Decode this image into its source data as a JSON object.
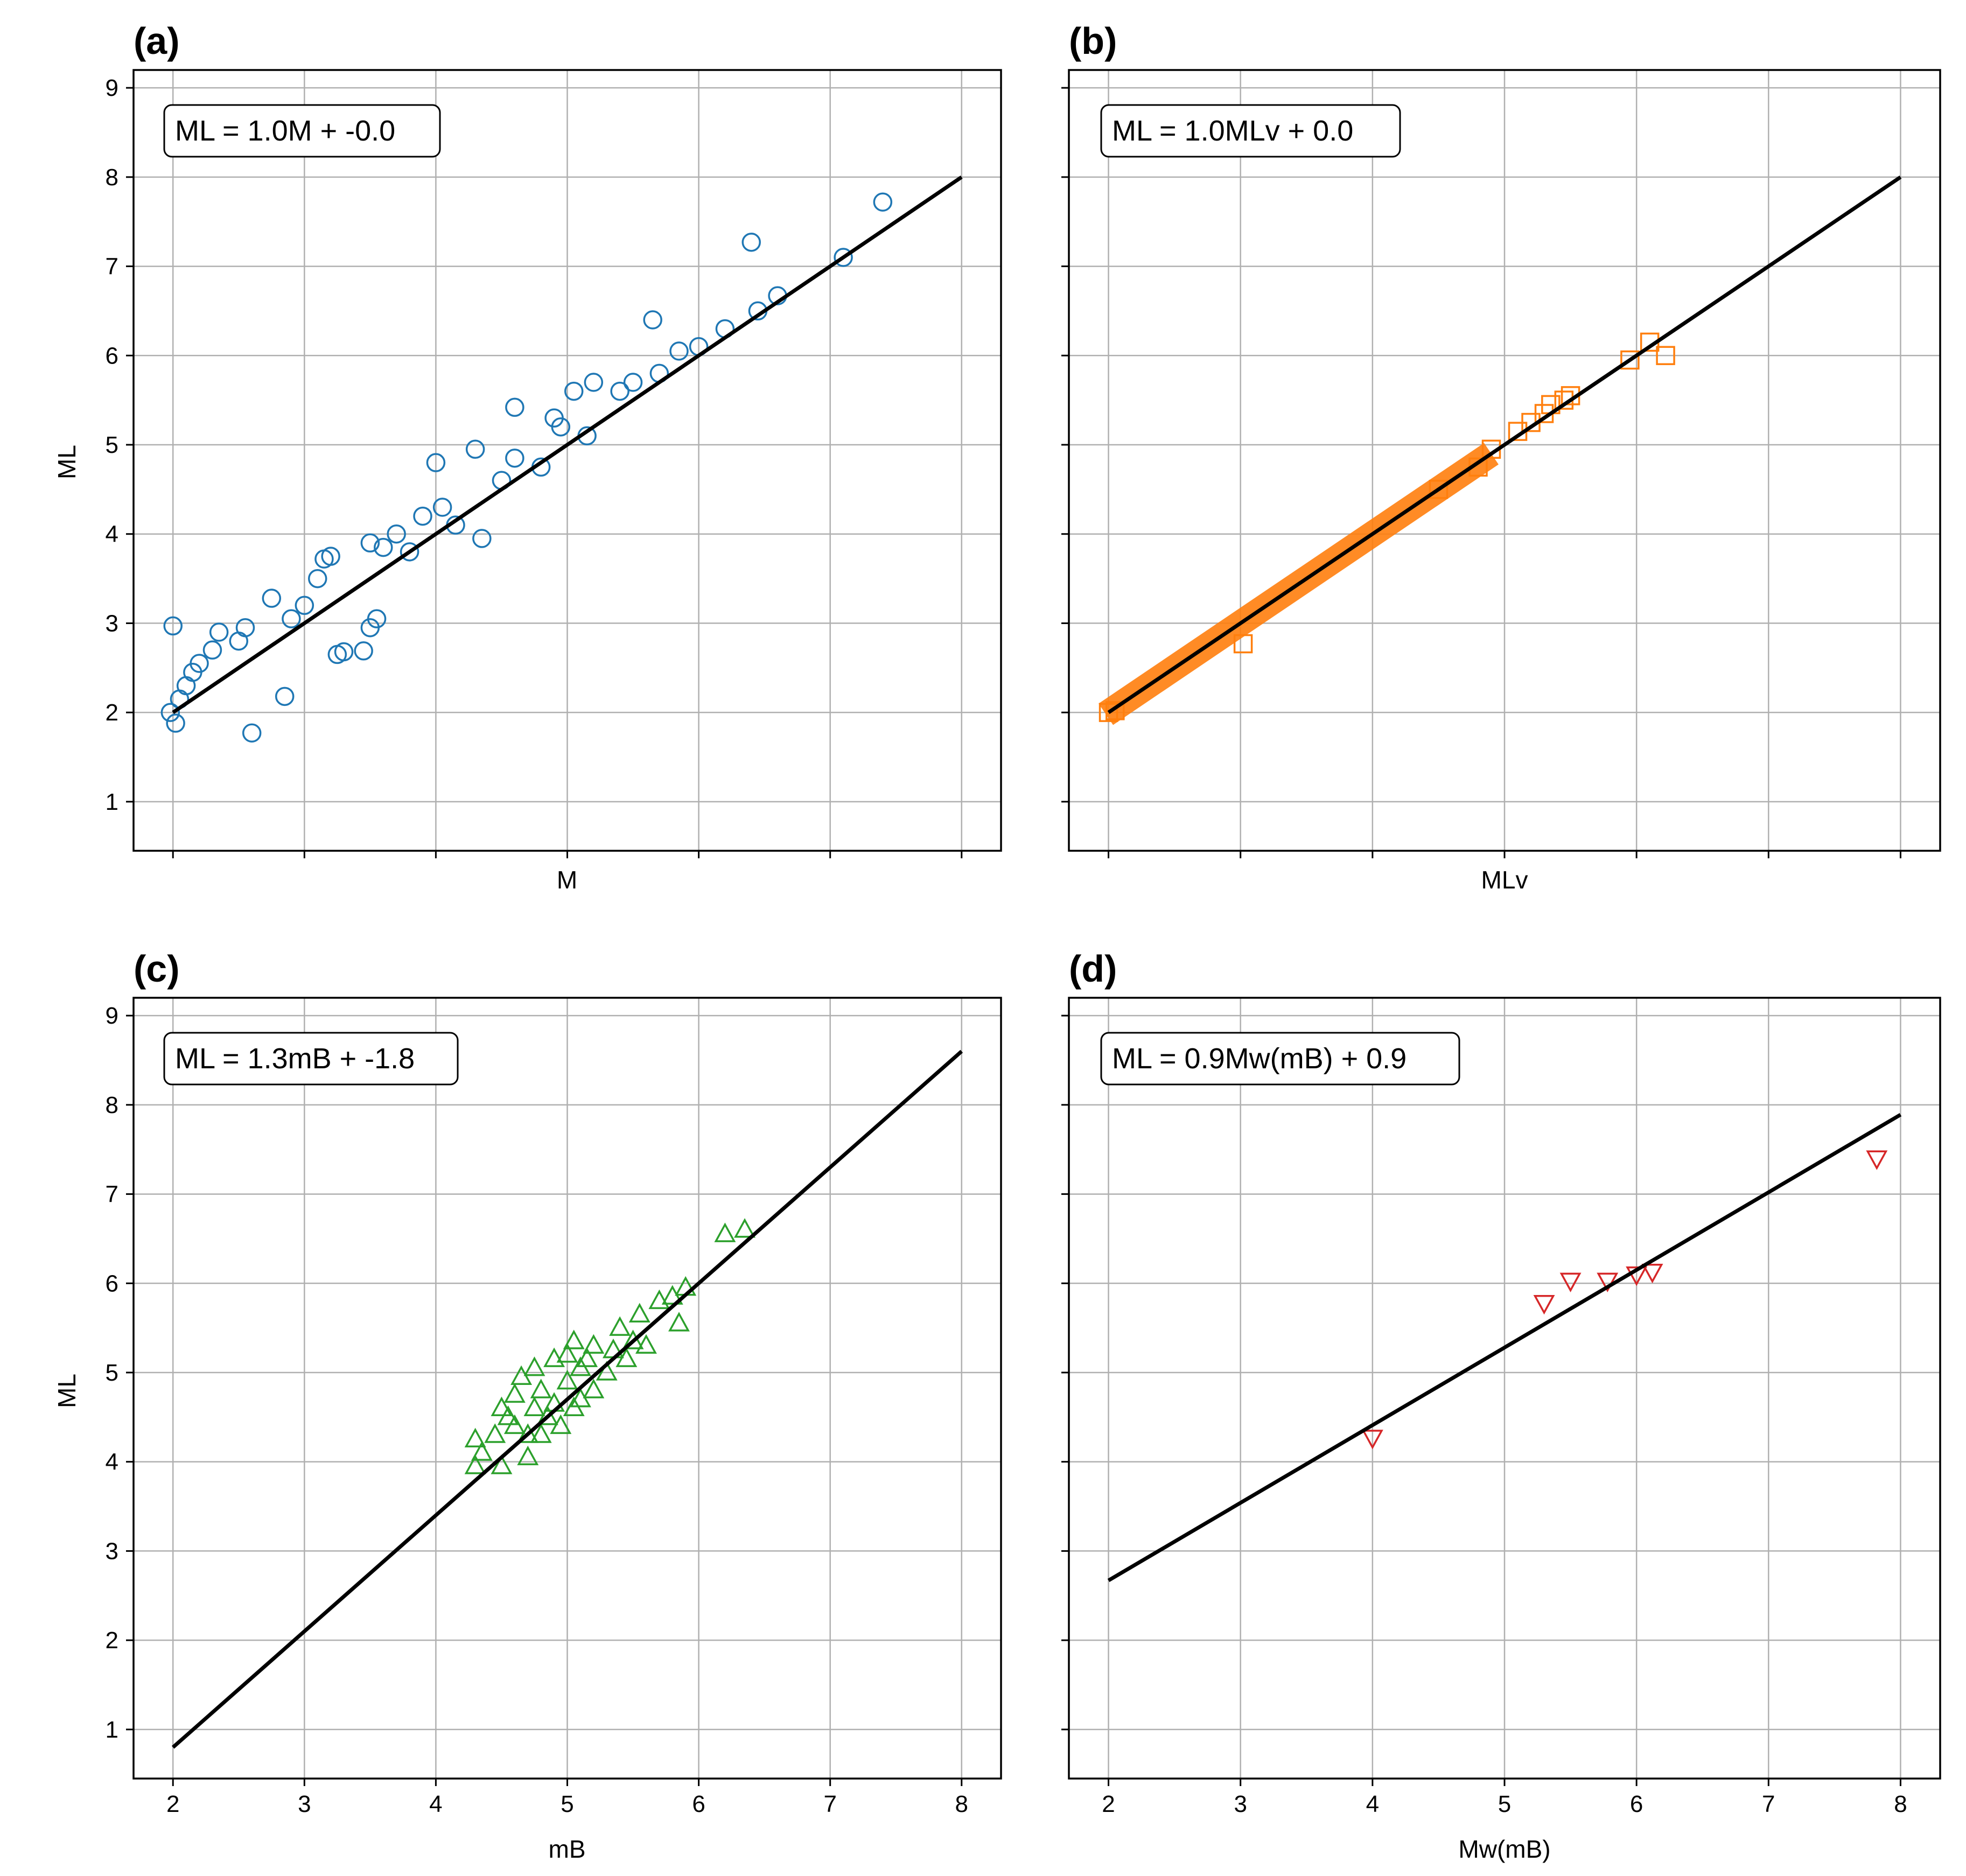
{
  "chart_data": [
    {
      "panel": "(a)",
      "type": "scatter",
      "xlabel": "M",
      "ylabel": "ML",
      "xlim": [
        1.7,
        8.3
      ],
      "ylim": [
        0.45,
        9.2
      ],
      "xticks": [
        2,
        3,
        4,
        5,
        6,
        7,
        8
      ],
      "yticks": [
        1,
        2,
        3,
        4,
        5,
        6,
        7,
        8,
        9
      ],
      "show_xtick_labels": false,
      "show_ytick_labels": true,
      "grid": true,
      "annotation": "ML = 1.0M + -0.0",
      "marker": "circle",
      "color": "#1f77b4",
      "fit": {
        "slope": 1.0,
        "intercept": 0.0,
        "x_range": [
          2,
          8
        ]
      },
      "points": [
        [
          2.0,
          2.97
        ],
        [
          2.02,
          1.88
        ],
        [
          1.98,
          2.0
        ],
        [
          2.05,
          2.15
        ],
        [
          2.1,
          2.3
        ],
        [
          2.15,
          2.45
        ],
        [
          2.2,
          2.55
        ],
        [
          2.3,
          2.7
        ],
        [
          2.35,
          2.9
        ],
        [
          2.6,
          1.77
        ],
        [
          2.5,
          2.8
        ],
        [
          2.55,
          2.95
        ],
        [
          2.75,
          3.28
        ],
        [
          2.85,
          2.18
        ],
        [
          2.9,
          3.05
        ],
        [
          3.0,
          3.2
        ],
        [
          3.1,
          3.5
        ],
        [
          3.15,
          3.72
        ],
        [
          3.2,
          3.75
        ],
        [
          3.3,
          2.68
        ],
        [
          3.25,
          2.65
        ],
        [
          3.45,
          2.69
        ],
        [
          3.5,
          2.95
        ],
        [
          3.55,
          3.05
        ],
        [
          3.5,
          3.9
        ],
        [
          3.6,
          3.85
        ],
        [
          3.7,
          4.0
        ],
        [
          3.8,
          3.8
        ],
        [
          3.9,
          4.2
        ],
        [
          4.0,
          4.8
        ],
        [
          4.05,
          4.3
        ],
        [
          4.15,
          4.1
        ],
        [
          4.3,
          4.95
        ],
        [
          4.35,
          3.95
        ],
        [
          4.5,
          4.6
        ],
        [
          4.6,
          4.85
        ],
        [
          4.6,
          5.42
        ],
        [
          4.8,
          4.75
        ],
        [
          4.9,
          5.3
        ],
        [
          4.95,
          5.2
        ],
        [
          5.05,
          5.6
        ],
        [
          5.15,
          5.1
        ],
        [
          5.2,
          5.7
        ],
        [
          5.4,
          5.6
        ],
        [
          5.5,
          5.7
        ],
        [
          5.65,
          6.4
        ],
        [
          5.7,
          5.8
        ],
        [
          5.85,
          6.05
        ],
        [
          6.0,
          6.1
        ],
        [
          6.2,
          6.3
        ],
        [
          6.4,
          7.27
        ],
        [
          6.45,
          6.5
        ],
        [
          6.6,
          6.67
        ],
        [
          7.1,
          7.1
        ],
        [
          7.4,
          7.72
        ]
      ]
    },
    {
      "panel": "(b)",
      "type": "scatter",
      "xlabel": "MLv",
      "ylabel": "",
      "xlim": [
        1.7,
        8.3
      ],
      "ylim": [
        0.45,
        9.2
      ],
      "xticks": [
        2,
        3,
        4,
        5,
        6,
        7,
        8
      ],
      "yticks": [
        1,
        2,
        3,
        4,
        5,
        6,
        7,
        8,
        9
      ],
      "show_xtick_labels": false,
      "show_ytick_labels": false,
      "grid": true,
      "annotation": "ML = 1.0MLv + 0.0",
      "marker": "square",
      "color": "#ff7f0e",
      "fit": {
        "slope": 1.0,
        "intercept": 0.0,
        "x_range": [
          2,
          8
        ]
      },
      "points": [
        [
          2.0,
          2.0
        ],
        [
          2.05,
          2.02
        ],
        [
          3.02,
          2.77
        ],
        [
          4.5,
          4.5
        ],
        [
          4.8,
          4.75
        ],
        [
          4.9,
          4.95
        ],
        [
          5.1,
          5.15
        ],
        [
          5.2,
          5.25
        ],
        [
          5.3,
          5.35
        ],
        [
          5.35,
          5.45
        ],
        [
          5.45,
          5.5
        ],
        [
          5.5,
          5.55
        ],
        [
          5.95,
          5.95
        ],
        [
          6.1,
          6.15
        ],
        [
          6.22,
          6.0
        ]
      ]
    },
    {
      "panel": "(c)",
      "type": "scatter",
      "xlabel": "mB",
      "ylabel": "ML",
      "xlim": [
        1.7,
        8.3
      ],
      "ylim": [
        0.45,
        9.2
      ],
      "xticks": [
        2,
        3,
        4,
        5,
        6,
        7,
        8
      ],
      "yticks": [
        1,
        2,
        3,
        4,
        5,
        6,
        7,
        8,
        9
      ],
      "show_xtick_labels": true,
      "show_ytick_labels": true,
      "grid": true,
      "annotation": "ML = 1.3mB + -1.8",
      "marker": "triangle-up",
      "color": "#2ca02c",
      "fit": {
        "slope": 1.3,
        "intercept": -1.8,
        "x_range": [
          2,
          8
        ]
      },
      "points": [
        [
          4.3,
          3.95
        ],
        [
          4.3,
          4.25
        ],
        [
          4.35,
          4.1
        ],
        [
          4.45,
          4.3
        ],
        [
          4.5,
          3.95
        ],
        [
          4.5,
          4.6
        ],
        [
          4.55,
          4.5
        ],
        [
          4.6,
          4.4
        ],
        [
          4.6,
          4.75
        ],
        [
          4.65,
          4.95
        ],
        [
          4.7,
          4.05
        ],
        [
          4.7,
          4.3
        ],
        [
          4.75,
          4.6
        ],
        [
          4.75,
          5.05
        ],
        [
          4.8,
          4.3
        ],
        [
          4.8,
          4.8
        ],
        [
          4.85,
          4.5
        ],
        [
          4.9,
          5.15
        ],
        [
          4.9,
          4.65
        ],
        [
          4.95,
          4.4
        ],
        [
          5.0,
          4.9
        ],
        [
          5.0,
          5.2
        ],
        [
          5.05,
          4.6
        ],
        [
          5.05,
          5.35
        ],
        [
          5.1,
          5.05
        ],
        [
          5.1,
          4.7
        ],
        [
          5.15,
          5.15
        ],
        [
          5.2,
          4.8
        ],
        [
          5.2,
          5.3
        ],
        [
          5.3,
          5.0
        ],
        [
          5.35,
          5.25
        ],
        [
          5.4,
          5.5
        ],
        [
          5.45,
          5.15
        ],
        [
          5.5,
          5.35
        ],
        [
          5.55,
          5.65
        ],
        [
          5.6,
          5.3
        ],
        [
          5.7,
          5.8
        ],
        [
          5.8,
          5.85
        ],
        [
          5.85,
          5.55
        ],
        [
          5.9,
          5.95
        ],
        [
          6.2,
          6.55
        ],
        [
          6.35,
          6.6
        ]
      ]
    },
    {
      "panel": "(d)",
      "type": "scatter",
      "xlabel": "Mw(mB)",
      "ylabel": "",
      "xlim": [
        1.7,
        8.3
      ],
      "ylim": [
        0.45,
        9.2
      ],
      "xticks": [
        2,
        3,
        4,
        5,
        6,
        7,
        8
      ],
      "yticks": [
        1,
        2,
        3,
        4,
        5,
        6,
        7,
        8,
        9
      ],
      "show_xtick_labels": true,
      "show_ytick_labels": false,
      "grid": true,
      "annotation": "ML = 0.9Mw(mB) + 0.9",
      "marker": "triangle-down",
      "color": "#d62728",
      "fit": {
        "slope": 0.87,
        "intercept": 0.93,
        "x_range": [
          2,
          8
        ]
      },
      "points": [
        [
          4.0,
          4.27
        ],
        [
          5.3,
          5.78
        ],
        [
          5.5,
          6.03
        ],
        [
          5.78,
          6.03
        ],
        [
          6.0,
          6.1
        ],
        [
          6.12,
          6.13
        ],
        [
          7.82,
          7.4
        ]
      ]
    }
  ]
}
